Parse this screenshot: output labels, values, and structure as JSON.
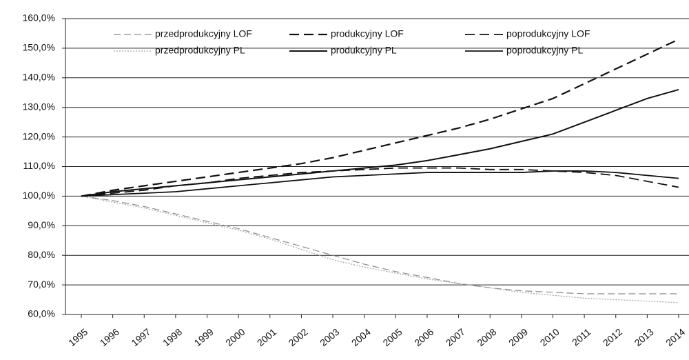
{
  "chart_data": {
    "type": "line",
    "x": [
      "1995",
      "1996",
      "1997",
      "1998",
      "1999",
      "2000",
      "2001",
      "2002",
      "2003",
      "2004",
      "2005",
      "2006",
      "2007",
      "2008",
      "2009",
      "2010",
      "2011",
      "2012",
      "2013",
      "2014"
    ],
    "ylim": [
      60,
      160
    ],
    "yticks": [
      {
        "value": 60,
        "label": "60,0%"
      },
      {
        "value": 70,
        "label": "70,0%"
      },
      {
        "value": 80,
        "label": "80,0%"
      },
      {
        "value": 90,
        "label": "90,0%"
      },
      {
        "value": 100,
        "label": "100,0%"
      },
      {
        "value": 110,
        "label": "110,0%"
      },
      {
        "value": 120,
        "label": "120,0%"
      },
      {
        "value": 130,
        "label": "130,0%"
      },
      {
        "value": 140,
        "label": "140,0%"
      },
      {
        "value": 150,
        "label": "150,0%"
      },
      {
        "value": 160,
        "label": "160,0%"
      }
    ],
    "grid": true,
    "legend": "top",
    "series": [
      {
        "name": "przedprodukcyjny LOF",
        "color": "#8a8a8a",
        "style": "dashed",
        "width": 1.2,
        "values": [
          100,
          98.5,
          96.5,
          94,
          91.5,
          89,
          86,
          83,
          80,
          77,
          74.5,
          72.5,
          70.5,
          69,
          68,
          67.5,
          67,
          67,
          67,
          67
        ]
      },
      {
        "name": "produkcyjny LOF",
        "color": "#111111",
        "style": "dashed",
        "width": 2.2,
        "values": [
          100,
          102,
          103.5,
          105,
          106.5,
          108,
          109.5,
          111,
          113,
          115.5,
          118,
          120.5,
          123,
          126,
          129.5,
          133,
          138,
          143,
          148,
          153
        ]
      },
      {
        "name": "poprodukcyjny LOF",
        "color": "#111111",
        "style": "dashed",
        "width": 1.8,
        "values": [
          100,
          101,
          102,
          103.5,
          104.5,
          106,
          107,
          108,
          108.5,
          109,
          109.5,
          109.5,
          109.5,
          109,
          109,
          108.5,
          108,
          107,
          105,
          103
        ]
      },
      {
        "name": "przedprodukcyjny PL",
        "color": "#a0a0a0",
        "style": "dotted",
        "width": 1.2,
        "values": [
          100,
          98,
          96,
          93.5,
          91,
          88.5,
          85.5,
          82,
          78.5,
          76,
          74,
          72,
          70.5,
          69,
          67.5,
          66.5,
          65.5,
          65,
          64.5,
          64
        ]
      },
      {
        "name": "produkcyjny PL",
        "color": "#111111",
        "style": "solid",
        "width": 2,
        "values": [
          100,
          101.5,
          102.5,
          103.5,
          104.5,
          105.5,
          106.5,
          107.5,
          108.5,
          109.5,
          110.5,
          112,
          114,
          116,
          118.5,
          121,
          125,
          129,
          133,
          136
        ]
      },
      {
        "name": "poprodukcyjny PL",
        "color": "#111111",
        "style": "solid",
        "width": 1.8,
        "values": [
          100,
          100.5,
          101,
          101.5,
          102.5,
          103.5,
          104.5,
          105.5,
          106.5,
          107,
          107.5,
          108,
          108,
          108,
          108,
          108.5,
          108.5,
          108,
          107,
          106
        ]
      }
    ]
  }
}
